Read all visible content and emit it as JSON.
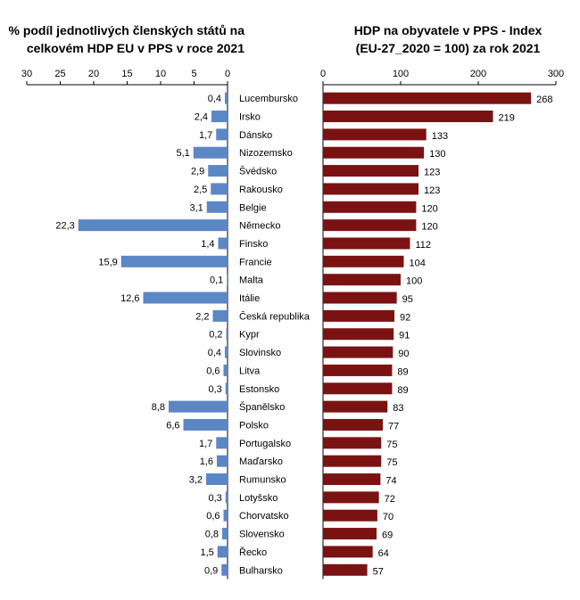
{
  "left_chart": {
    "title_line1": "% podíl jednotlivých členských států na",
    "title_line2": "celkovém HDP EU v PPS v roce 2021",
    "ticks": [
      "30",
      "25",
      "20",
      "15",
      "10",
      "5",
      "0"
    ],
    "bar_color": "#5b87c5"
  },
  "right_chart": {
    "title_line1": "HDP na obyvatele v PPS - Index",
    "title_line2": "(EU-27_2020 = 100) za rok 2021",
    "ticks": [
      "0",
      "100",
      "200",
      "300"
    ],
    "bar_color": "#7b1212"
  },
  "chart_data": [
    {
      "type": "bar",
      "orientation": "horizontal",
      "direction": "reversed",
      "title": "% podíl jednotlivých členských států na celkovém HDP EU v PPS v roce 2021",
      "xlim": [
        0,
        30
      ],
      "categories": [
        "Lucembursko",
        "Irsko",
        "Dánsko",
        "Nizozemsko",
        "Švédsko",
        "Rakousko",
        "Belgie",
        "Německo",
        "Finsko",
        "Francie",
        "Malta",
        "Itálie",
        "Česká republika",
        "Kypr",
        "Slovinsko",
        "Litva",
        "Estonsko",
        "Španělsko",
        "Polsko",
        "Portugalsko",
        "Maďarsko",
        "Rumunsko",
        "Lotyšsko",
        "Chorvatsko",
        "Slovensko",
        "Řecko",
        "Bulharsko"
      ],
      "values": [
        0.4,
        2.4,
        1.7,
        5.1,
        2.9,
        2.5,
        3.1,
        22.3,
        1.4,
        15.9,
        0.1,
        12.6,
        2.2,
        0.2,
        0.4,
        0.6,
        0.3,
        8.8,
        6.6,
        1.7,
        1.6,
        3.2,
        0.3,
        0.6,
        0.8,
        1.5,
        0.9
      ],
      "labels": [
        "0,4",
        "2,4",
        "1,7",
        "5,1",
        "2,9",
        "2,5",
        "3,1",
        "22,3",
        "1,4",
        "15,9",
        "0,1",
        "12,6",
        "2,2",
        "0,2",
        "0,4",
        "0,6",
        "0,3",
        "8,8",
        "6,6",
        "1,7",
        "1,6",
        "3,2",
        "0,3",
        "0,6",
        "0,8",
        "1,5",
        "0,9"
      ]
    },
    {
      "type": "bar",
      "orientation": "horizontal",
      "title": "HDP na obyvatele v PPS - Index (EU-27_2020 = 100) za rok 2021",
      "xlim": [
        0,
        300
      ],
      "categories": [
        "Lucembursko",
        "Irsko",
        "Dánsko",
        "Nizozemsko",
        "Švédsko",
        "Rakousko",
        "Belgie",
        "Německo",
        "Finsko",
        "Francie",
        "Malta",
        "Itálie",
        "Česká republika",
        "Kypr",
        "Slovinsko",
        "Litva",
        "Estonsko",
        "Španělsko",
        "Polsko",
        "Portugalsko",
        "Maďarsko",
        "Rumunsko",
        "Lotyšsko",
        "Chorvatsko",
        "Slovensko",
        "Řecko",
        "Bulharsko"
      ],
      "values": [
        268,
        219,
        133,
        130,
        123,
        123,
        120,
        120,
        112,
        104,
        100,
        95,
        92,
        91,
        90,
        89,
        89,
        83,
        77,
        75,
        75,
        74,
        72,
        70,
        69,
        64,
        57
      ]
    }
  ]
}
